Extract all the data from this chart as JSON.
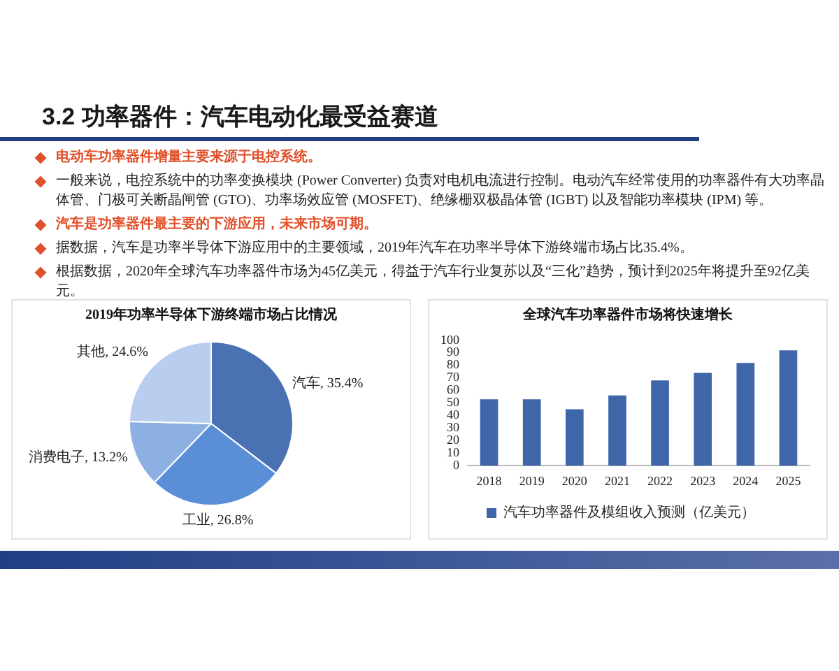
{
  "chart_data": [
    {
      "type": "other",
      "title": "3.2 功率器件：汽车电动化最受益赛道",
      "annotations": [
        "电动车功率器件增量主要来源于电控系统。",
        "一般来说，电控系统中的功率变换模块 (Power Converter) 负责对电机电流进行控制。电动汽车经常使用的功率器件有大功率晶体管、门极可关断晶闸管 (GTO)、功率场效应管 (MOSFET)、绝缘栅双极晶体管 (IGBT) 以及智能功率模块 (IPM) 等。",
        "汽车是功率器件最主要的下游应用，未来市场可期。",
        "据数据，汽车是功率半导体下游应用中的主要领域，2019年汽车在功率半导体下游终端市场占比35.4%。",
        "根据数据，2020年全球汽车功率器件市场为45亿美元，得益于汽车行业复苏以及“三化”趋势，预计到2025年将提升至92亿美元。"
      ]
    },
    {
      "type": "pie",
      "title": "2019年功率半导体下游终端市场占比情况",
      "categories": [
        "汽车",
        "工业",
        "消费电子",
        "其他"
      ],
      "values": [
        35.4,
        26.8,
        13.2,
        24.6
      ],
      "value_labels": [
        "35.4%",
        "26.8%",
        "13.2%",
        "24.6%"
      ],
      "colors": [
        "#4a72b2",
        "#5a8fd8",
        "#8db0e3",
        "#b9cdee"
      ]
    },
    {
      "type": "bar",
      "title": "全球汽车功率器件市场将快速增长",
      "categories": [
        "2018",
        "2019",
        "2020",
        "2021",
        "2022",
        "2023",
        "2024",
        "2025"
      ],
      "series": [
        {
          "name": "汽车功率器件及模组收入预测（亿美元）",
          "color": "#3f66a9",
          "values": [
            53,
            53,
            45,
            56,
            68,
            74,
            82,
            92
          ]
        }
      ],
      "ylim": [
        0,
        100
      ],
      "yticks": [
        0,
        10,
        20,
        30,
        40,
        50,
        60,
        70,
        80,
        90,
        100
      ],
      "legend": "bottom"
    }
  ]
}
